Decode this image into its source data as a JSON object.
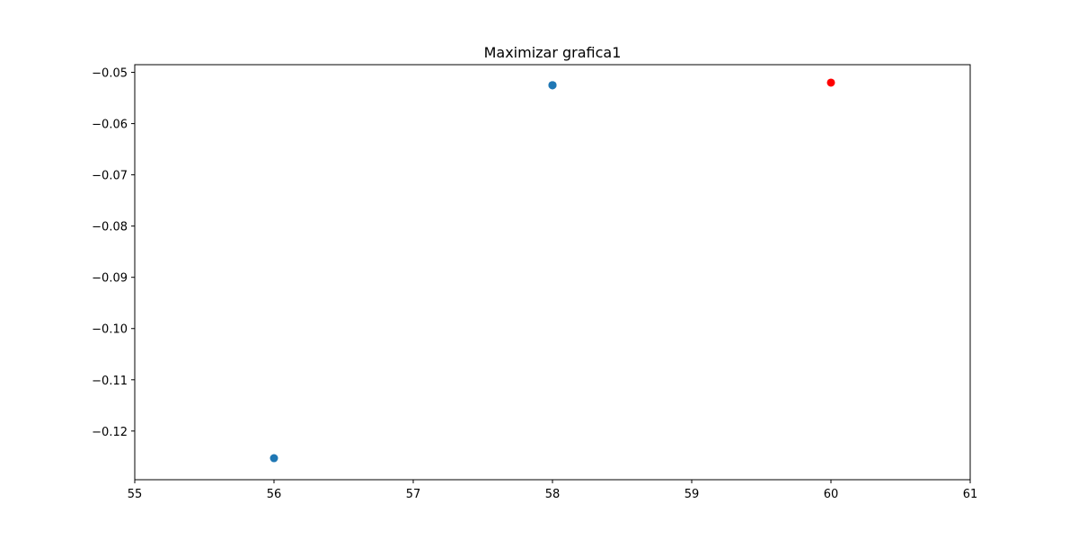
{
  "chart_data": {
    "type": "scatter",
    "title": "Maximizar grafica1",
    "xlabel": "",
    "ylabel": "",
    "xlim": [
      55,
      61
    ],
    "ylim": [
      -0.1295,
      -0.0485
    ],
    "x_ticks": [
      55,
      56,
      57,
      58,
      59,
      60,
      61
    ],
    "x_tick_labels": [
      "55",
      "56",
      "57",
      "58",
      "59",
      "60",
      "61"
    ],
    "y_ticks": [
      -0.05,
      -0.06,
      -0.07,
      -0.08,
      -0.09,
      -0.1,
      -0.11,
      -0.12
    ],
    "y_tick_labels": [
      "−0.05",
      "−0.06",
      "−0.07",
      "−0.08",
      "−0.09",
      "−0.10",
      "−0.11",
      "−0.12"
    ],
    "grid": false,
    "legend": "none",
    "series": [
      {
        "color": "#1f77b4",
        "points": [
          {
            "x": 56,
            "y": -0.1253
          },
          {
            "x": 58,
            "y": -0.0525
          },
          {
            "x": 58,
            "y": -0.0525
          },
          {
            "x": 58,
            "y": -0.0525
          }
        ]
      },
      {
        "color": "#ff0000",
        "points": [
          {
            "x": 60,
            "y": -0.052
          }
        ]
      }
    ]
  }
}
